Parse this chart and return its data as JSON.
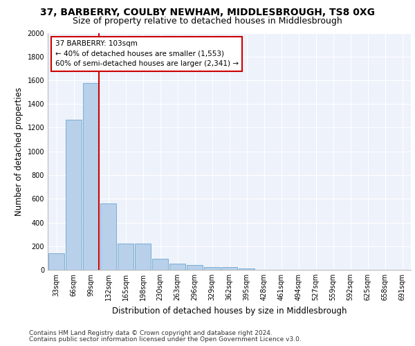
{
  "title1": "37, BARBERRY, COULBY NEWHAM, MIDDLESBROUGH, TS8 0XG",
  "title2": "Size of property relative to detached houses in Middlesbrough",
  "xlabel": "Distribution of detached houses by size in Middlesbrough",
  "ylabel": "Number of detached properties",
  "bar_labels": [
    "33sqm",
    "66sqm",
    "99sqm",
    "132sqm",
    "165sqm",
    "198sqm",
    "230sqm",
    "263sqm",
    "296sqm",
    "329sqm",
    "362sqm",
    "395sqm",
    "428sqm",
    "461sqm",
    "494sqm",
    "527sqm",
    "559sqm",
    "592sqm",
    "625sqm",
    "658sqm",
    "691sqm"
  ],
  "bar_values": [
    140,
    1265,
    1575,
    560,
    220,
    220,
    95,
    50,
    40,
    22,
    22,
    10,
    0,
    0,
    0,
    0,
    0,
    0,
    0,
    0,
    0
  ],
  "bar_color": "#b8d0ea",
  "bar_edge_color": "#7aadd4",
  "property_bar_index": 2,
  "annotation_line1": "37 BARBERRY: 103sqm",
  "annotation_line2": "← 40% of detached houses are smaller (1,553)",
  "annotation_line3": "60% of semi-detached houses are larger (2,341) →",
  "vline_color": "#cc0000",
  "annotation_box_color": "#ffffff",
  "annotation_box_edge": "#cc0000",
  "ylim": [
    0,
    2000
  ],
  "yticks": [
    0,
    200,
    400,
    600,
    800,
    1000,
    1200,
    1400,
    1600,
    1800,
    2000
  ],
  "footer1": "Contains HM Land Registry data © Crown copyright and database right 2024.",
  "footer2": "Contains public sector information licensed under the Open Government Licence v3.0.",
  "background_color": "#eef2fb",
  "grid_color": "#ffffff",
  "title1_fontsize": 10,
  "title2_fontsize": 9,
  "xlabel_fontsize": 8.5,
  "ylabel_fontsize": 8.5,
  "tick_fontsize": 7,
  "annotation_fontsize": 7.5,
  "footer_fontsize": 6.5
}
